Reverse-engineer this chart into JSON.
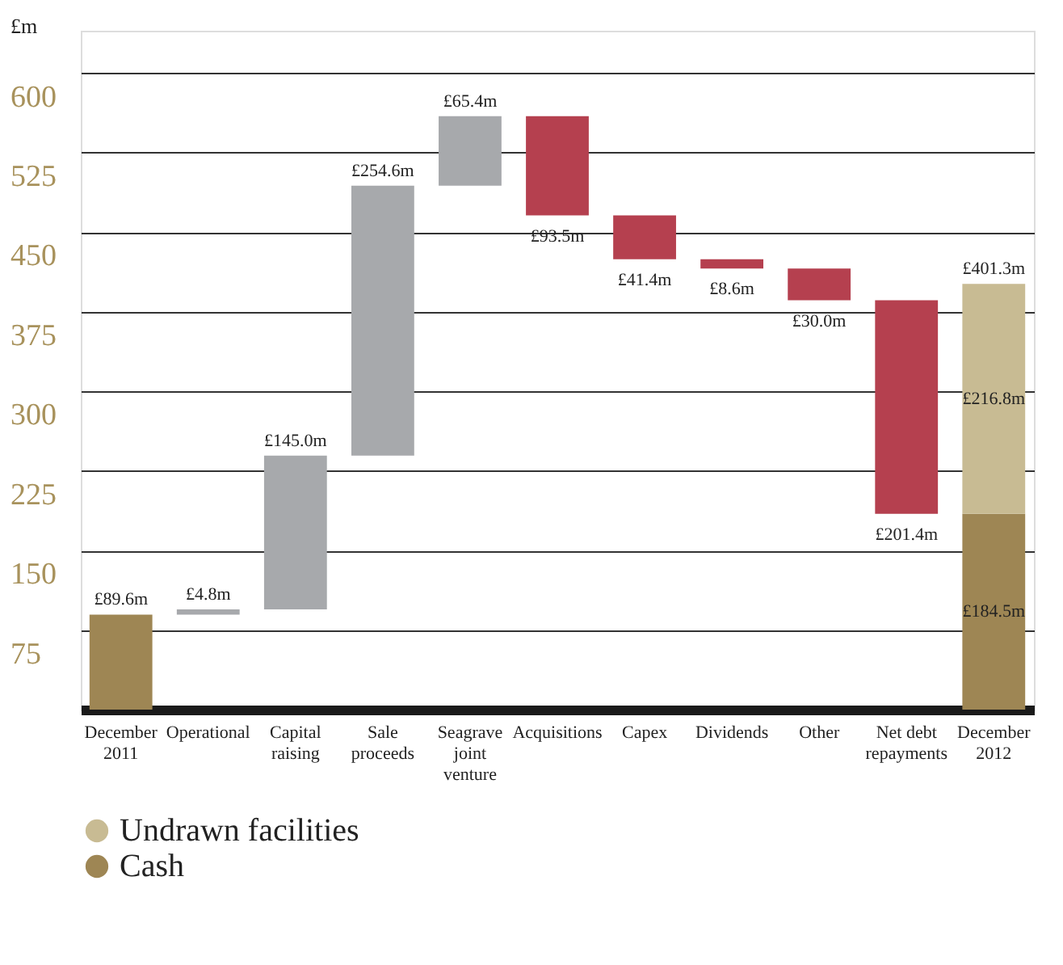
{
  "chart_data": {
    "type": "bar",
    "ylabel": "£m",
    "categories": [
      "December 2011",
      "Operational",
      "Capital raising",
      "Sale proceeds",
      "Seagrave joint venture",
      "Acquisitions",
      "Capex",
      "Dividends",
      "Other",
      "Net debt repayments",
      "December 2012"
    ],
    "series": [
      {
        "name": "Cash",
        "color": "#9e8654",
        "values": [
          89.6,
          null,
          null,
          null,
          null,
          null,
          null,
          null,
          null,
          null,
          184.5
        ],
        "value_labels": [
          "£89.6m",
          null,
          null,
          null,
          null,
          null,
          null,
          null,
          null,
          null,
          "£184.5m"
        ]
      },
      {
        "name": "Undrawn facilities",
        "color": "#c8bb93",
        "base": [
          null,
          null,
          null,
          null,
          null,
          null,
          null,
          null,
          null,
          null,
          184.5
        ],
        "values": [
          null,
          null,
          null,
          null,
          null,
          null,
          null,
          null,
          null,
          null,
          216.8
        ],
        "value_labels": [
          null,
          null,
          null,
          null,
          null,
          null,
          null,
          null,
          null,
          null,
          "£216.8m"
        ]
      },
      {
        "colors": [
          "#a7a9ac",
          "#a7a9ac",
          "#a7a9ac",
          "#a7a9ac",
          "#a7a9ac",
          "#b5404f",
          "#b5404f",
          "#b5404f",
          "#b5404f",
          "#b5404f",
          "#a7a9ac"
        ],
        "base": [
          null,
          89.6,
          94.4,
          239.4,
          494.0,
          465.9,
          424.5,
          415.9,
          385.9,
          184.5,
          null
        ],
        "values": [
          null,
          4.8,
          145.0,
          254.6,
          65.4,
          93.5,
          41.4,
          8.6,
          30.0,
          201.4,
          null
        ],
        "value_labels": [
          null,
          "£4.8m",
          "£145.0m",
          "£254.6m",
          "£65.4m",
          "£93.5m",
          "£41.4m",
          "£8.6m",
          "£30.0m",
          "£201.4m",
          null
        ]
      }
    ],
    "totals": [
      null,
      null,
      null,
      null,
      null,
      null,
      null,
      null,
      null,
      null,
      "£401.3m"
    ],
    "ylim": [
      0,
      640
    ],
    "yticks": [
      75,
      150,
      225,
      300,
      375,
      450,
      525,
      600
    ],
    "grid": "y",
    "legend": "bottom left"
  }
}
